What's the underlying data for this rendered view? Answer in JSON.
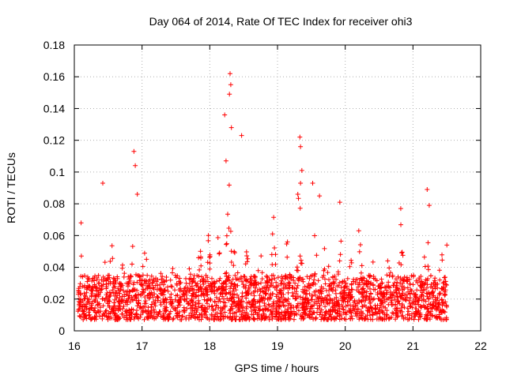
{
  "chart_data": {
    "type": "scatter",
    "title": "Day 064 of 2014, Rate Of TEC Index for receiver ohi3",
    "xlabel": "GPS time / hours",
    "ylabel": "ROTI / TECUs",
    "xlim": [
      16,
      22
    ],
    "ylim": [
      0,
      0.18
    ],
    "xticks": [
      "16",
      "17",
      "18",
      "19",
      "20",
      "21",
      "22"
    ],
    "yticks": [
      "0",
      "0.02",
      "0.04",
      "0.06",
      "0.08",
      "0.1",
      "0.12",
      "0.14",
      "0.16",
      "0.18"
    ],
    "grid": true,
    "marker": "+",
    "color": "#ff0000",
    "data_range": {
      "x_start": 16.05,
      "x_end": 21.5
    },
    "notable_points": [
      {
        "x": 16.1,
        "y": 0.068
      },
      {
        "x": 16.42,
        "y": 0.093
      },
      {
        "x": 16.88,
        "y": 0.113
      },
      {
        "x": 16.9,
        "y": 0.104
      },
      {
        "x": 16.93,
        "y": 0.086
      },
      {
        "x": 18.22,
        "y": 0.136
      },
      {
        "x": 18.24,
        "y": 0.107
      },
      {
        "x": 18.3,
        "y": 0.162
      },
      {
        "x": 18.31,
        "y": 0.155
      },
      {
        "x": 18.29,
        "y": 0.149
      },
      {
        "x": 18.32,
        "y": 0.128
      },
      {
        "x": 18.47,
        "y": 0.123
      },
      {
        "x": 19.33,
        "y": 0.122
      },
      {
        "x": 19.34,
        "y": 0.116
      },
      {
        "x": 19.36,
        "y": 0.101
      },
      {
        "x": 19.3,
        "y": 0.086
      },
      {
        "x": 19.52,
        "y": 0.093
      },
      {
        "x": 19.62,
        "y": 0.085
      },
      {
        "x": 19.92,
        "y": 0.081
      },
      {
        "x": 20.2,
        "y": 0.063
      },
      {
        "x": 20.82,
        "y": 0.077
      },
      {
        "x": 21.21,
        "y": 0.089
      },
      {
        "x": 21.24,
        "y": 0.079
      },
      {
        "x": 21.5,
        "y": 0.054
      }
    ]
  }
}
